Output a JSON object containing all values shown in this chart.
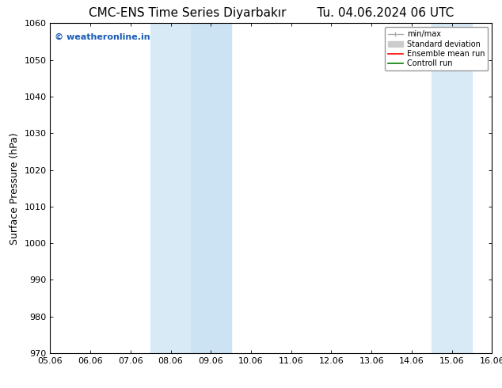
{
  "title_left": "CMC-ENS Time Series Diyarbakır",
  "title_right": "Tu. 04.06.2024 06 UTC",
  "ylabel": "Surface Pressure (hPa)",
  "ylim": [
    970,
    1060
  ],
  "yticks": [
    970,
    980,
    990,
    1000,
    1010,
    1020,
    1030,
    1040,
    1050,
    1060
  ],
  "xtick_labels": [
    "05.06",
    "06.06",
    "07.06",
    "08.06",
    "09.06",
    "10.06",
    "11.06",
    "12.06",
    "13.06",
    "14.06",
    "15.06",
    "16.06"
  ],
  "shaded_regions": [
    {
      "xmin": 3,
      "xmax": 4,
      "color": "#d8eaf6"
    },
    {
      "xmin": 4,
      "xmax": 5,
      "color": "#cce3f4"
    },
    {
      "xmin": 10,
      "xmax": 11,
      "color": "#d8eaf6"
    }
  ],
  "watermark": "© weatheronline.in",
  "watermark_color": "#1a5bb5",
  "watermark_fontsize": 8,
  "background_color": "#ffffff",
  "legend_items": [
    {
      "label": "min/max",
      "color": "#aaaaaa",
      "lw": 1.0
    },
    {
      "label": "Standard deviation",
      "color": "#cccccc",
      "lw": 8
    },
    {
      "label": "Ensemble mean run",
      "color": "red",
      "lw": 1.2
    },
    {
      "label": "Controll run",
      "color": "green",
      "lw": 1.2
    }
  ],
  "title_fontsize": 11,
  "ylabel_fontsize": 9,
  "tick_fontsize": 8
}
